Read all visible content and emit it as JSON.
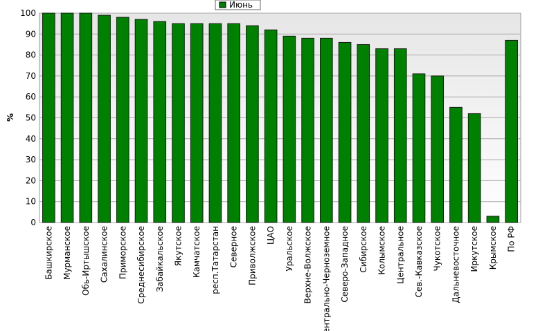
{
  "chart_data": {
    "type": "bar",
    "y_label": "%",
    "categories": [
      "Башкирское",
      "Мурманское",
      "Обь-Иртышское",
      "Сахалинское",
      "Приморское",
      "Среднесибирское",
      "Забайкальское",
      "Якутское",
      "Камчатское",
      "респ.Татарстан",
      "Северное",
      "Приволжское",
      "ЦАО",
      "Уральское",
      "Верхне-Волжское",
      "Центрально-Черноземное",
      "Северо-Западное",
      "Сибирское",
      "Колымское",
      "Центральное",
      "Сев.-Кавказское",
      "Чукотское",
      "Дальневосточное",
      "Иркутское",
      "Крымское",
      "По РФ"
    ],
    "series": [
      {
        "name": "Июнь",
        "color": "#008000",
        "values": [
          100,
          100,
          100,
          99,
          98,
          97,
          96,
          95,
          95,
          95,
          95,
          94,
          92,
          89,
          88,
          88,
          86,
          85,
          83,
          83,
          71,
          70,
          55,
          52,
          3,
          87
        ]
      }
    ],
    "ylim": [
      0,
      100
    ],
    "yticks": [
      0,
      10,
      20,
      30,
      40,
      50,
      60,
      70,
      80,
      90,
      100
    ],
    "grid": true,
    "legend": "top"
  }
}
